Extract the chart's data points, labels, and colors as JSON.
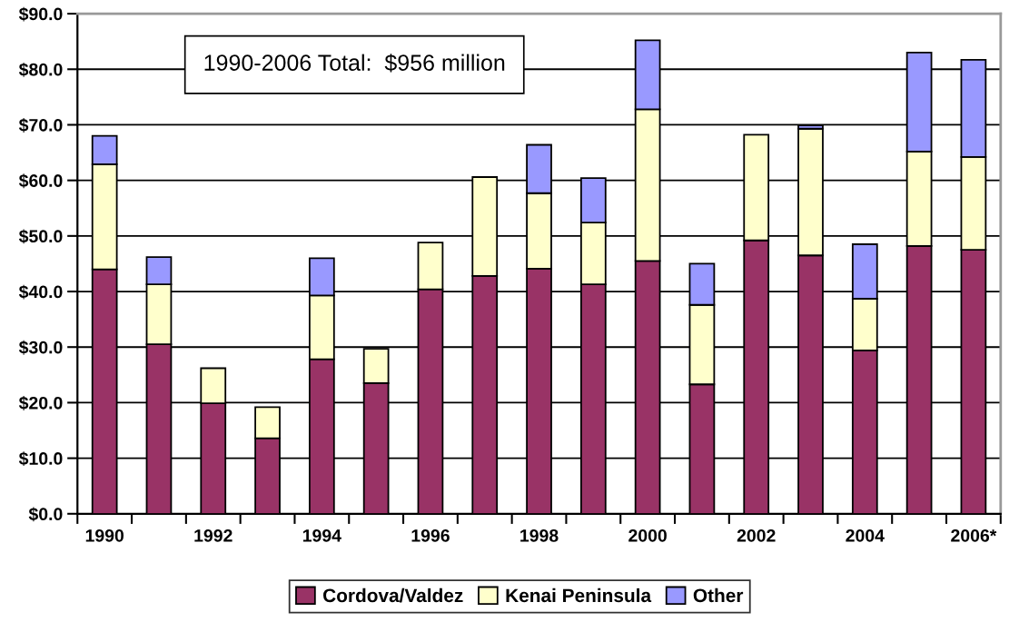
{
  "chart_data": {
    "type": "bar",
    "stacked": true,
    "categories": [
      "1990",
      null,
      "1992",
      null,
      "1994",
      null,
      "1996",
      null,
      "1998",
      null,
      "2000",
      null,
      "2002",
      null,
      "2004",
      null,
      "2006*"
    ],
    "series": [
      {
        "name": "Cordova/Valdez",
        "color": "#993366",
        "values": [
          44.0,
          30.5,
          19.9,
          13.6,
          27.8,
          23.5,
          40.4,
          42.8,
          44.1,
          41.3,
          45.5,
          23.3,
          49.2,
          46.5,
          29.4,
          48.2,
          47.5
        ]
      },
      {
        "name": "Kenai Peninsula",
        "color": "#ffffcc",
        "values": [
          18.9,
          10.8,
          6.3,
          5.6,
          11.5,
          6.2,
          8.4,
          17.8,
          13.6,
          11.1,
          27.3,
          14.3,
          19.0,
          22.8,
          9.3,
          17.0,
          16.7
        ]
      },
      {
        "name": "Other",
        "color": "#9999ff",
        "values": [
          5.1,
          4.9,
          null,
          null,
          6.7,
          null,
          null,
          null,
          8.7,
          8.0,
          12.4,
          7.4,
          null,
          0.6,
          9.8,
          17.8,
          17.5
        ]
      }
    ],
    "ylim": [
      0,
      90
    ],
    "yticks": [
      {
        "value": 0,
        "label": "$0.0"
      },
      {
        "value": 10,
        "label": "$10.0"
      },
      {
        "value": 20,
        "label": "$20.0"
      },
      {
        "value": 30,
        "label": "$30.0"
      },
      {
        "value": 40,
        "label": "$40.0"
      },
      {
        "value": 50,
        "label": "$50.0"
      },
      {
        "value": 60,
        "label": "$60.0"
      },
      {
        "value": 70,
        "label": "$70.0"
      },
      {
        "value": 80,
        "label": "$80.0"
      },
      {
        "value": 90,
        "label": "$90.0"
      }
    ],
    "grid": "y",
    "legend": "bottom",
    "annotations": [
      "1990-2006 Total:  $956 million"
    ]
  }
}
